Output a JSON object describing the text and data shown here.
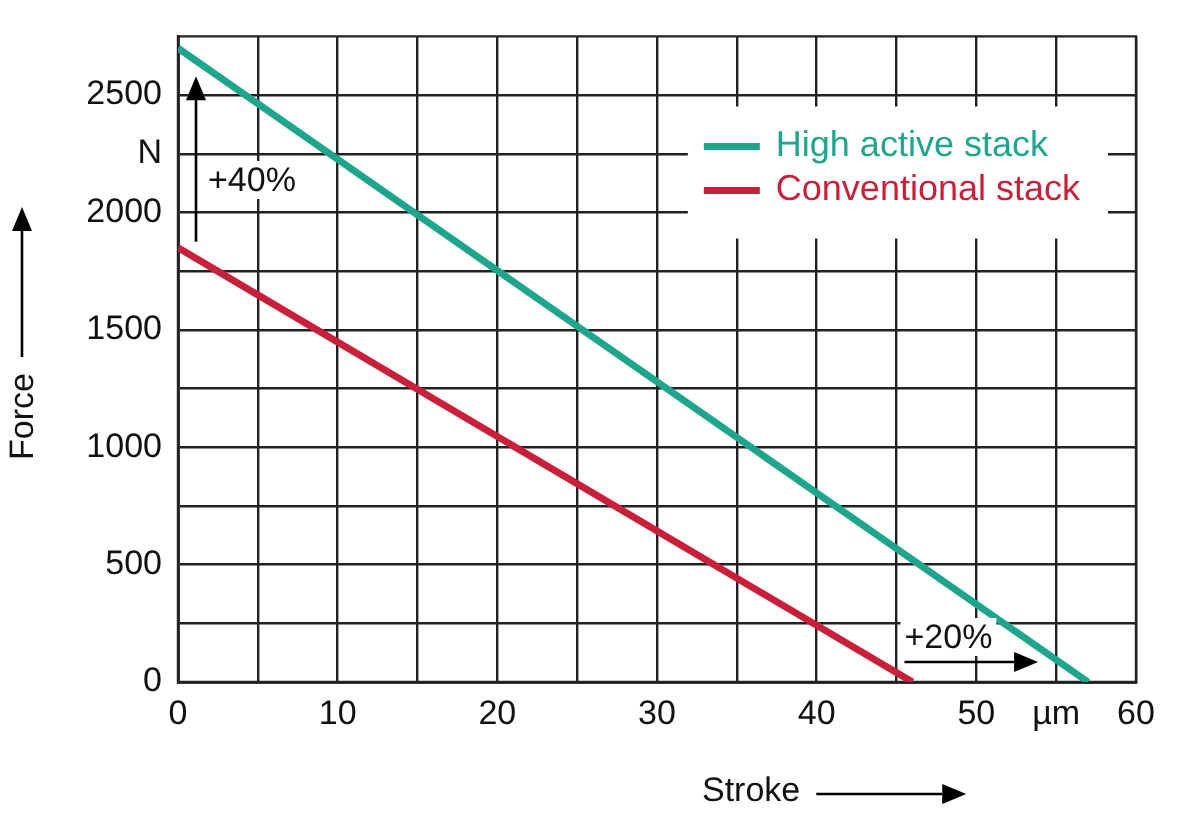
{
  "chart_data": {
    "type": "line",
    "xlabel": "Stroke",
    "ylabel": "Force",
    "series": [
      {
        "name": "High active stack",
        "color": "#1fa58c",
        "x": [
          0,
          57
        ],
        "values": [
          2700,
          0
        ]
      },
      {
        "name": "Conventional stack",
        "color": "#c8203a",
        "x": [
          0,
          46
        ],
        "values": [
          1850,
          0
        ]
      }
    ],
    "xlim": [
      0,
      60
    ],
    "xticks": [
      0,
      {
        "value": 5,
        "label": null
      },
      10,
      {
        "value": 15,
        "label": null
      },
      20,
      {
        "value": 25,
        "label": null
      },
      30,
      {
        "value": 35,
        "label": null
      },
      40,
      {
        "value": 45,
        "label": null
      },
      50,
      {
        "value": 55,
        "label": "µm"
      },
      60
    ],
    "ylim": [
      0,
      2750
    ],
    "yticks": [
      0,
      {
        "value": 250,
        "label": null
      },
      500,
      {
        "value": 750,
        "label": null
      },
      1000,
      {
        "value": 1250,
        "label": null
      },
      1500,
      {
        "value": 1750,
        "label": null
      },
      2000,
      {
        "value": 2250,
        "label": "N"
      },
      2500
    ],
    "annotations": [
      "+40%",
      "+20%"
    ],
    "grid": true,
    "legend": "top right",
    "marker": "none",
    "line_style": "solid"
  }
}
